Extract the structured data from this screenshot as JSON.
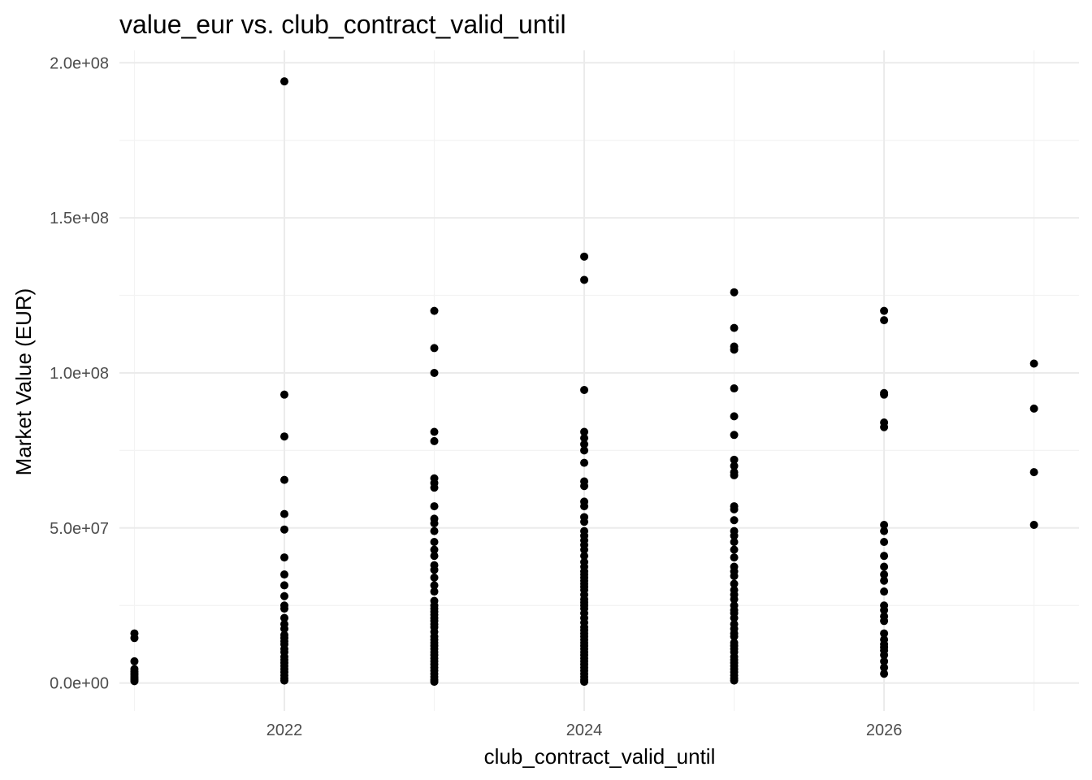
{
  "chart_data": {
    "type": "scatter",
    "title": "value_eur vs. club_contract_valid_until",
    "xlabel": "club_contract_valid_until",
    "ylabel": "Market Value (EUR)",
    "xlim": [
      2020.9,
      2027.3
    ],
    "ylim": [
      -9000000,
      204000000
    ],
    "x_ticks": [
      2022,
      2024,
      2026
    ],
    "x_tick_labels": [
      "2022",
      "2024",
      "2026"
    ],
    "x_minor_ticks": [
      2021,
      2023,
      2025,
      2027
    ],
    "y_ticks": [
      0,
      50000000,
      100000000,
      150000000,
      200000000
    ],
    "y_tick_labels": [
      "0.0e+00",
      "5.0e+07",
      "1.0e+08",
      "1.5e+08",
      "2.0e+08"
    ],
    "y_minor_ticks": [
      25000000,
      75000000,
      125000000,
      175000000
    ],
    "grid": true,
    "legend": "none",
    "point_color": "#000000",
    "series": [
      {
        "x": 2021,
        "values": [
          16000000,
          14500000,
          7000000,
          4500000,
          3800000,
          3200000,
          2600000,
          2000000,
          1500000,
          1000000,
          600000
        ]
      },
      {
        "x": 2022,
        "values": [
          194000000,
          93000000,
          79500000,
          65500000,
          54500000,
          49500000,
          40500000,
          35000000,
          31500000,
          28000000,
          25000000,
          24000000,
          21000000,
          19000000,
          17500000,
          15500000,
          14500000,
          13500000,
          12500000,
          11000000,
          10000000,
          8500000,
          7500000,
          6500000,
          5500000,
          4500000,
          3500000,
          2500000,
          1500000,
          800000
        ]
      },
      {
        "x": 2023,
        "values": [
          120000000,
          108000000,
          100000000,
          81000000,
          78000000,
          66000000,
          64500000,
          63000000,
          57000000,
          53000000,
          51500000,
          49000000,
          45500000,
          43000000,
          41000000,
          38000000,
          36500000,
          34000000,
          31500000,
          29500000,
          26500000,
          25000000,
          24000000,
          23000000,
          22000000,
          21000000,
          20000000,
          19000000,
          18000000,
          16500000,
          15000000,
          14000000,
          13000000,
          12000000,
          11000000,
          10000000,
          9000000,
          8000000,
          7000000,
          6000000,
          5000000,
          4000000,
          3000000,
          2000000,
          1000000,
          400000
        ]
      },
      {
        "x": 2024,
        "values": [
          137500000,
          130000000,
          94500000,
          81000000,
          79000000,
          77000000,
          75000000,
          71000000,
          65000000,
          63500000,
          58500000,
          57000000,
          53500000,
          52000000,
          49000000,
          47500000,
          46000000,
          44500000,
          43000000,
          41000000,
          39000000,
          37500000,
          36000000,
          35000000,
          34000000,
          33000000,
          32000000,
          31000000,
          30000000,
          28500000,
          27000000,
          26000000,
          25000000,
          24000000,
          22500000,
          21000000,
          19500000,
          18000000,
          17000000,
          16000000,
          15000000,
          14000000,
          13000000,
          12000000,
          11000000,
          10000000,
          9000000,
          8000000,
          7000000,
          6000000,
          5000000,
          4000000,
          3000000,
          2000000,
          1000000,
          400000
        ]
      },
      {
        "x": 2025,
        "values": [
          126000000,
          114500000,
          108500000,
          107500000,
          95000000,
          86000000,
          80000000,
          72000000,
          70000000,
          68000000,
          67000000,
          57000000,
          56000000,
          52500000,
          49000000,
          47500000,
          45500000,
          43000000,
          40500000,
          37500000,
          36000000,
          34500000,
          32000000,
          30000000,
          28500000,
          27000000,
          25000000,
          23500000,
          22500000,
          21000000,
          19000000,
          17500000,
          16000000,
          15000000,
          13000000,
          12000000,
          11000000,
          10000000,
          8500000,
          7500000,
          6500000,
          5500000,
          4500000,
          3500000,
          2500000,
          1500000,
          800000
        ]
      },
      {
        "x": 2026,
        "values": [
          120000000,
          117000000,
          93500000,
          93000000,
          84000000,
          82500000,
          51000000,
          49000000,
          45500000,
          41000000,
          37500000,
          35000000,
          33000000,
          29500000,
          25000000,
          23500000,
          21500000,
          20000000,
          16000000,
          14000000,
          12500000,
          11500000,
          10500000,
          9000000,
          7000000,
          5000000,
          3000000
        ]
      },
      {
        "x": 2027,
        "values": [
          103000000,
          88500000,
          68000000,
          51000000
        ]
      }
    ]
  }
}
